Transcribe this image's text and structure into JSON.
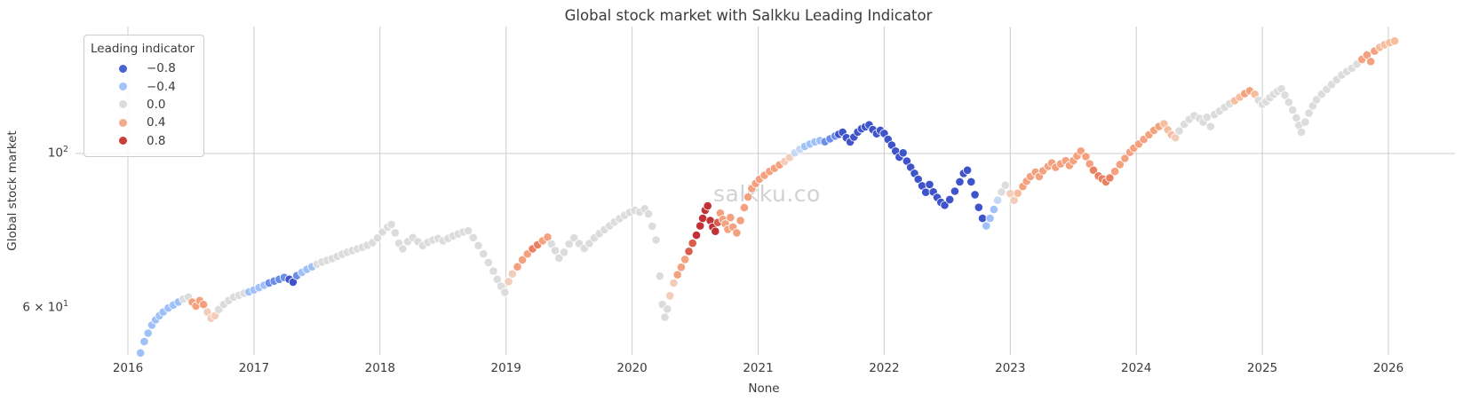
{
  "title": "Global stock market with Salkku Leading Indicator",
  "watermark": "salkku.co",
  "axes": {
    "x_label": "None",
    "y_label": "Global stock market",
    "y_ticks": [
      {
        "prefix": "",
        "base": "10",
        "exp": "2",
        "value": 100
      },
      {
        "prefix": "6 × ",
        "base": "10",
        "exp": "1",
        "value": 60
      }
    ]
  },
  "legend": {
    "title": "Leading indicator",
    "entries": [
      {
        "label": "−0.8",
        "color": "#4763d2"
      },
      {
        "label": "−0.4",
        "color": "#a2c3f9"
      },
      {
        "label": "0.0",
        "color": "#dcdbda"
      },
      {
        "label": "0.4",
        "color": "#f4ab8c"
      },
      {
        "label": "0.8",
        "color": "#c93d36"
      }
    ]
  },
  "colors": {
    "gridline": "#cccccc",
    "point_edge": "#ffffff",
    "text": "#3b3b3b",
    "watermark": "#d2d2d2"
  },
  "chart_data": {
    "type": "scatter",
    "title": "Global stock market with Salkku Leading Indicator",
    "xlabel": "None",
    "ylabel": "Global stock market",
    "y_scale": "log",
    "ylim": [
      48,
      160
    ],
    "xlim": [
      2015.58,
      2026.55
    ],
    "x_ticks": [
      2016,
      2017,
      2018,
      2019,
      2020,
      2021,
      2022,
      2023,
      2024,
      2025,
      2026
    ],
    "y_tick_values": [
      100,
      60
    ],
    "grid": "x-years and y at 100",
    "legend_title": "Leading indicator",
    "legend_values": [
      -0.8,
      -0.4,
      0.0,
      0.4,
      0.8
    ],
    "palette": {
      "g": "#dcdcdc",
      "pb": "#c7d8f4",
      "lb": "#a0c1f7",
      "mb": "#6d8de9",
      "db": "#3f54cb",
      "pk": "#f3cdbb",
      "vs": "#f6bd9f",
      "sa": "#f4a180",
      "co": "#eb8162",
      "rc": "#d95d49",
      "dr": "#c23136"
    },
    "points": [
      [
        2016.1,
        51.5,
        "lb"
      ],
      [
        2016.13,
        53.5,
        "lb"
      ],
      [
        2016.16,
        55.0,
        "lb"
      ],
      [
        2016.19,
        56.5,
        "lb"
      ],
      [
        2016.22,
        57.5,
        "lb"
      ],
      [
        2016.25,
        58.3,
        "lb"
      ],
      [
        2016.28,
        59.0,
        "lb"
      ],
      [
        2016.32,
        59.8,
        "lb"
      ],
      [
        2016.36,
        60.4,
        "lb"
      ],
      [
        2016.4,
        61.0,
        "lb"
      ],
      [
        2016.44,
        61.6,
        "g"
      ],
      [
        2016.48,
        62.0,
        "g"
      ],
      [
        2016.51,
        61.0,
        "sa"
      ],
      [
        2016.54,
        60.2,
        "sa"
      ],
      [
        2016.57,
        61.3,
        "sa"
      ],
      [
        2016.6,
        60.5,
        "sa"
      ],
      [
        2016.63,
        59.0,
        "pk"
      ],
      [
        2016.66,
        57.8,
        "pk"
      ],
      [
        2016.69,
        58.3,
        "pk"
      ],
      [
        2016.72,
        59.5,
        "g"
      ],
      [
        2016.76,
        60.5,
        "g"
      ],
      [
        2016.8,
        61.3,
        "g"
      ],
      [
        2016.84,
        62.0,
        "g"
      ],
      [
        2016.88,
        62.4,
        "g"
      ],
      [
        2016.92,
        62.8,
        "g"
      ],
      [
        2016.96,
        63.1,
        "lb"
      ],
      [
        2017.0,
        63.5,
        "lb"
      ],
      [
        2017.04,
        64.0,
        "lb"
      ],
      [
        2017.08,
        64.5,
        "lb"
      ],
      [
        2017.12,
        65.0,
        "mb"
      ],
      [
        2017.16,
        65.4,
        "mb"
      ],
      [
        2017.2,
        65.8,
        "mb"
      ],
      [
        2017.24,
        66.2,
        "mb"
      ],
      [
        2017.28,
        65.8,
        "db"
      ],
      [
        2017.31,
        65.2,
        "db"
      ],
      [
        2017.34,
        66.6,
        "mb"
      ],
      [
        2017.38,
        67.3,
        "lb"
      ],
      [
        2017.42,
        68.0,
        "lb"
      ],
      [
        2017.46,
        68.6,
        "lb"
      ],
      [
        2017.5,
        69.2,
        "g"
      ],
      [
        2017.54,
        69.7,
        "g"
      ],
      [
        2017.58,
        70.1,
        "g"
      ],
      [
        2017.62,
        70.5,
        "g"
      ],
      [
        2017.66,
        71.0,
        "g"
      ],
      [
        2017.7,
        71.5,
        "g"
      ],
      [
        2017.74,
        72.0,
        "g"
      ],
      [
        2017.78,
        72.4,
        "g"
      ],
      [
        2017.82,
        72.8,
        "g"
      ],
      [
        2017.86,
        73.2,
        "g"
      ],
      [
        2017.9,
        73.7,
        "g"
      ],
      [
        2017.94,
        74.3,
        "g"
      ],
      [
        2017.98,
        75.5,
        "g"
      ],
      [
        2018.02,
        77.0,
        "g"
      ],
      [
        2018.06,
        78.3,
        "g"
      ],
      [
        2018.09,
        79.0,
        "g"
      ],
      [
        2018.12,
        76.8,
        "g"
      ],
      [
        2018.15,
        74.2,
        "g"
      ],
      [
        2018.18,
        72.8,
        "g"
      ],
      [
        2018.22,
        74.6,
        "g"
      ],
      [
        2018.26,
        75.6,
        "g"
      ],
      [
        2018.3,
        74.6,
        "g"
      ],
      [
        2018.34,
        73.6,
        "g"
      ],
      [
        2018.38,
        74.4,
        "g"
      ],
      [
        2018.42,
        75.0,
        "g"
      ],
      [
        2018.46,
        75.4,
        "g"
      ],
      [
        2018.5,
        74.8,
        "g"
      ],
      [
        2018.54,
        75.4,
        "g"
      ],
      [
        2018.58,
        76.0,
        "g"
      ],
      [
        2018.62,
        76.5,
        "g"
      ],
      [
        2018.66,
        77.0,
        "g"
      ],
      [
        2018.7,
        77.3,
        "g"
      ],
      [
        2018.74,
        75.6,
        "g"
      ],
      [
        2018.78,
        73.6,
        "g"
      ],
      [
        2018.82,
        71.6,
        "g"
      ],
      [
        2018.86,
        69.6,
        "g"
      ],
      [
        2018.9,
        67.6,
        "g"
      ],
      [
        2018.93,
        65.8,
        "g"
      ],
      [
        2018.96,
        64.3,
        "g"
      ],
      [
        2018.99,
        63.0,
        "g"
      ],
      [
        2019.02,
        65.3,
        "pk"
      ],
      [
        2019.05,
        67.0,
        "pk"
      ],
      [
        2019.09,
        68.6,
        "sa"
      ],
      [
        2019.13,
        70.2,
        "sa"
      ],
      [
        2019.17,
        71.6,
        "sa"
      ],
      [
        2019.21,
        72.8,
        "co"
      ],
      [
        2019.25,
        73.8,
        "co"
      ],
      [
        2019.29,
        74.8,
        "sa"
      ],
      [
        2019.33,
        75.7,
        "sa"
      ],
      [
        2019.36,
        74.0,
        "g"
      ],
      [
        2019.39,
        72.4,
        "g"
      ],
      [
        2019.42,
        70.6,
        "g"
      ],
      [
        2019.46,
        72.0,
        "g"
      ],
      [
        2019.5,
        74.0,
        "g"
      ],
      [
        2019.54,
        75.5,
        "g"
      ],
      [
        2019.58,
        74.1,
        "g"
      ],
      [
        2019.62,
        72.9,
        "g"
      ],
      [
        2019.66,
        74.1,
        "g"
      ],
      [
        2019.7,
        75.5,
        "g"
      ],
      [
        2019.74,
        76.6,
        "g"
      ],
      [
        2019.78,
        77.6,
        "g"
      ],
      [
        2019.82,
        78.6,
        "g"
      ],
      [
        2019.86,
        79.6,
        "g"
      ],
      [
        2019.9,
        80.5,
        "g"
      ],
      [
        2019.94,
        81.4,
        "g"
      ],
      [
        2019.98,
        82.2,
        "g"
      ],
      [
        2020.02,
        82.8,
        "g"
      ],
      [
        2020.06,
        82.3,
        "g"
      ],
      [
        2020.1,
        83.2,
        "g"
      ],
      [
        2020.13,
        81.8,
        "g"
      ],
      [
        2020.16,
        78.5,
        "g"
      ],
      [
        2020.19,
        75.0,
        "g"
      ],
      [
        2020.22,
        66.5,
        "g"
      ],
      [
        2020.24,
        60.5,
        "g"
      ],
      [
        2020.26,
        58.0,
        "g"
      ],
      [
        2020.28,
        59.6,
        "g"
      ],
      [
        2020.3,
        62.3,
        "pk"
      ],
      [
        2020.33,
        65.0,
        "pk"
      ],
      [
        2020.36,
        66.8,
        "sa"
      ],
      [
        2020.39,
        68.5,
        "sa"
      ],
      [
        2020.42,
        70.3,
        "sa"
      ],
      [
        2020.45,
        72.2,
        "rc"
      ],
      [
        2020.48,
        74.2,
        "rc"
      ],
      [
        2020.51,
        76.2,
        "dr"
      ],
      [
        2020.54,
        78.6,
        "dr"
      ],
      [
        2020.56,
        80.6,
        "dr"
      ],
      [
        2020.58,
        82.8,
        "dr"
      ],
      [
        2020.6,
        84.0,
        "dr"
      ],
      [
        2020.62,
        80.0,
        "dr"
      ],
      [
        2020.64,
        78.3,
        "dr"
      ],
      [
        2020.66,
        77.2,
        "dr"
      ],
      [
        2020.68,
        79.5,
        "rc"
      ],
      [
        2020.7,
        82.0,
        "sa"
      ],
      [
        2020.72,
        80.3,
        "sa"
      ],
      [
        2020.74,
        79.1,
        "sa"
      ],
      [
        2020.76,
        77.7,
        "sa"
      ],
      [
        2020.78,
        80.8,
        "sa"
      ],
      [
        2020.8,
        78.3,
        "sa"
      ],
      [
        2020.83,
        76.8,
        "sa"
      ],
      [
        2020.86,
        80.0,
        "sa"
      ],
      [
        2020.89,
        83.5,
        "sa"
      ],
      [
        2020.92,
        86.5,
        "sa"
      ],
      [
        2020.95,
        89.0,
        "sa"
      ],
      [
        2020.98,
        90.5,
        "sa"
      ],
      [
        2021.01,
        91.8,
        "sa"
      ],
      [
        2021.05,
        93.0,
        "sa"
      ],
      [
        2021.09,
        94.2,
        "sa"
      ],
      [
        2021.13,
        95.2,
        "sa"
      ],
      [
        2021.17,
        96.3,
        "sa"
      ],
      [
        2021.21,
        97.4,
        "pk"
      ],
      [
        2021.25,
        98.7,
        "pk"
      ],
      [
        2021.29,
        100.2,
        "pb"
      ],
      [
        2021.33,
        101.4,
        "pb"
      ],
      [
        2021.37,
        102.4,
        "lb"
      ],
      [
        2021.41,
        103.2,
        "lb"
      ],
      [
        2021.45,
        103.9,
        "lb"
      ],
      [
        2021.49,
        104.4,
        "lb"
      ],
      [
        2021.53,
        104.0,
        "mb"
      ],
      [
        2021.57,
        105.0,
        "mb"
      ],
      [
        2021.61,
        106.0,
        "mb"
      ],
      [
        2021.64,
        106.6,
        "db"
      ],
      [
        2021.67,
        107.3,
        "db"
      ],
      [
        2021.7,
        105.4,
        "db"
      ],
      [
        2021.73,
        103.9,
        "db"
      ],
      [
        2021.76,
        105.6,
        "db"
      ],
      [
        2021.79,
        107.4,
        "db"
      ],
      [
        2021.82,
        108.6,
        "db"
      ],
      [
        2021.85,
        109.3,
        "db"
      ],
      [
        2021.88,
        110.0,
        "db"
      ],
      [
        2021.91,
        108.3,
        "db"
      ],
      [
        2021.94,
        106.8,
        "db"
      ],
      [
        2021.97,
        108.0,
        "db"
      ],
      [
        2022.0,
        106.9,
        "db"
      ],
      [
        2022.03,
        104.8,
        "db"
      ],
      [
        2022.06,
        102.8,
        "db"
      ],
      [
        2022.09,
        100.8,
        "db"
      ],
      [
        2022.12,
        98.8,
        "db"
      ],
      [
        2022.15,
        100.2,
        "db"
      ],
      [
        2022.18,
        97.5,
        "db"
      ],
      [
        2022.21,
        95.5,
        "db"
      ],
      [
        2022.24,
        93.6,
        "db"
      ],
      [
        2022.27,
        91.8,
        "db"
      ],
      [
        2022.3,
        89.8,
        "db"
      ],
      [
        2022.33,
        87.9,
        "db"
      ],
      [
        2022.36,
        90.2,
        "db"
      ],
      [
        2022.39,
        88.0,
        "db"
      ],
      [
        2022.42,
        86.4,
        "db"
      ],
      [
        2022.45,
        85.0,
        "db"
      ],
      [
        2022.48,
        84.2,
        "db"
      ],
      [
        2022.52,
        85.8,
        "db"
      ],
      [
        2022.56,
        88.2,
        "db"
      ],
      [
        2022.6,
        91.0,
        "db"
      ],
      [
        2022.63,
        93.6,
        "db"
      ],
      [
        2022.66,
        94.6,
        "db"
      ],
      [
        2022.69,
        91.0,
        "db"
      ],
      [
        2022.72,
        87.2,
        "db"
      ],
      [
        2022.75,
        83.6,
        "db"
      ],
      [
        2022.78,
        80.6,
        "db"
      ],
      [
        2022.81,
        78.6,
        "lb"
      ],
      [
        2022.84,
        80.6,
        "lb"
      ],
      [
        2022.87,
        83.0,
        "lb"
      ],
      [
        2022.9,
        85.6,
        "pb"
      ],
      [
        2022.93,
        88.0,
        "g"
      ],
      [
        2022.96,
        90.0,
        "g"
      ],
      [
        2023.0,
        87.5,
        "pk"
      ],
      [
        2023.03,
        85.6,
        "pk"
      ],
      [
        2023.06,
        87.6,
        "vs"
      ],
      [
        2023.1,
        89.6,
        "sa"
      ],
      [
        2023.13,
        91.2,
        "sa"
      ],
      [
        2023.16,
        92.6,
        "sa"
      ],
      [
        2023.2,
        94.0,
        "sa"
      ],
      [
        2023.23,
        92.6,
        "sa"
      ],
      [
        2023.26,
        94.4,
        "sa"
      ],
      [
        2023.3,
        95.8,
        "sa"
      ],
      [
        2023.33,
        96.9,
        "sa"
      ],
      [
        2023.36,
        95.5,
        "sa"
      ],
      [
        2023.4,
        96.6,
        "sa"
      ],
      [
        2023.44,
        97.6,
        "sa"
      ],
      [
        2023.47,
        96.1,
        "sa"
      ],
      [
        2023.5,
        97.6,
        "sa"
      ],
      [
        2023.53,
        99.2,
        "sa"
      ],
      [
        2023.56,
        100.8,
        "sa"
      ],
      [
        2023.6,
        99.0,
        "sa"
      ],
      [
        2023.63,
        96.6,
        "sa"
      ],
      [
        2023.66,
        94.6,
        "co"
      ],
      [
        2023.7,
        92.8,
        "co"
      ],
      [
        2023.73,
        91.9,
        "co"
      ],
      [
        2023.76,
        91.0,
        "co"
      ],
      [
        2023.79,
        92.2,
        "co"
      ],
      [
        2023.83,
        94.2,
        "sa"
      ],
      [
        2023.87,
        96.4,
        "sa"
      ],
      [
        2023.91,
        98.4,
        "sa"
      ],
      [
        2023.95,
        100.4,
        "sa"
      ],
      [
        2023.98,
        101.8,
        "sa"
      ],
      [
        2024.02,
        103.2,
        "sa"
      ],
      [
        2024.06,
        104.8,
        "sa"
      ],
      [
        2024.1,
        106.4,
        "sa"
      ],
      [
        2024.14,
        108.0,
        "sa"
      ],
      [
        2024.18,
        109.4,
        "sa"
      ],
      [
        2024.22,
        110.4,
        "vs"
      ],
      [
        2024.25,
        108.2,
        "vs"
      ],
      [
        2024.28,
        106.4,
        "vs"
      ],
      [
        2024.31,
        105.4,
        "pk"
      ],
      [
        2024.34,
        107.8,
        "g"
      ],
      [
        2024.38,
        110.2,
        "g"
      ],
      [
        2024.42,
        112.0,
        "g"
      ],
      [
        2024.46,
        113.4,
        "g"
      ],
      [
        2024.5,
        112.4,
        "g"
      ],
      [
        2024.53,
        111.0,
        "g"
      ],
      [
        2024.56,
        112.8,
        "g"
      ],
      [
        2024.59,
        109.4,
        "g"
      ],
      [
        2024.62,
        113.8,
        "g"
      ],
      [
        2024.66,
        115.2,
        "g"
      ],
      [
        2024.7,
        116.6,
        "g"
      ],
      [
        2024.74,
        118.0,
        "g"
      ],
      [
        2024.78,
        119.2,
        "vs"
      ],
      [
        2024.82,
        120.6,
        "vs"
      ],
      [
        2024.86,
        122.0,
        "sa"
      ],
      [
        2024.9,
        123.2,
        "sa"
      ],
      [
        2024.94,
        121.8,
        "vs"
      ],
      [
        2024.97,
        119.4,
        "g"
      ],
      [
        2025.0,
        117.8,
        "g"
      ],
      [
        2025.03,
        118.8,
        "g"
      ],
      [
        2025.06,
        120.4,
        "g"
      ],
      [
        2025.09,
        121.8,
        "g"
      ],
      [
        2025.12,
        123.0,
        "g"
      ],
      [
        2025.15,
        124.0,
        "g"
      ],
      [
        2025.18,
        121.4,
        "g"
      ],
      [
        2025.21,
        118.6,
        "g"
      ],
      [
        2025.24,
        115.6,
        "g"
      ],
      [
        2025.27,
        112.6,
        "g"
      ],
      [
        2025.29,
        109.8,
        "g"
      ],
      [
        2025.31,
        107.4,
        "g"
      ],
      [
        2025.34,
        111.0,
        "g"
      ],
      [
        2025.37,
        114.4,
        "g"
      ],
      [
        2025.4,
        117.2,
        "g"
      ],
      [
        2025.43,
        119.6,
        "g"
      ],
      [
        2025.47,
        121.8,
        "g"
      ],
      [
        2025.51,
        123.8,
        "g"
      ],
      [
        2025.55,
        125.8,
        "g"
      ],
      [
        2025.59,
        127.8,
        "g"
      ],
      [
        2025.63,
        129.8,
        "g"
      ],
      [
        2025.67,
        131.4,
        "g"
      ],
      [
        2025.71,
        132.8,
        "g"
      ],
      [
        2025.75,
        134.6,
        "g"
      ],
      [
        2025.79,
        136.8,
        "sa"
      ],
      [
        2025.83,
        138.8,
        "sa"
      ],
      [
        2025.86,
        135.8,
        "sa"
      ],
      [
        2025.89,
        140.6,
        "sa"
      ],
      [
        2025.93,
        142.4,
        "vs"
      ],
      [
        2025.97,
        143.6,
        "vs"
      ],
      [
        2026.01,
        144.6,
        "vs"
      ],
      [
        2026.05,
        145.4,
        "vs"
      ]
    ]
  }
}
